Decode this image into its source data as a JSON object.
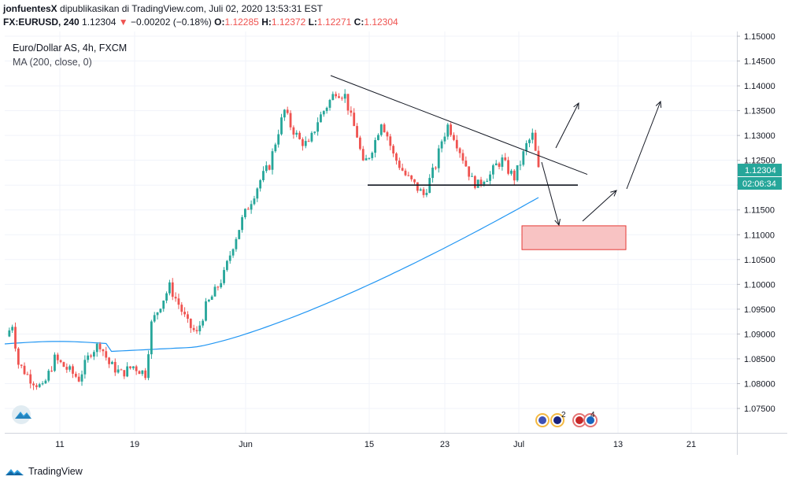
{
  "header": {
    "author": "jonfuentesX",
    "published": "dipublikasikan di TradingView.com, Juli 02, 2020 13:53:31 EST",
    "symbol": "FX:EURUSD, 240",
    "last": "1.12304",
    "change_arrow": "▼",
    "change": "−0.00202 (−0.18%)",
    "o_label": "O:",
    "o_val": "1.12285",
    "h_label": "H:",
    "h_val": "1.12372",
    "l_label": "L:",
    "l_val": "1.12271",
    "c_label": "C:",
    "c_val": "1.12304"
  },
  "legend": {
    "title": "Euro/Dollar AS, 4h, FXCM",
    "ma": "MA (200, close, 0)"
  },
  "price_tag": "1.12304",
  "countdown": "02:06:34",
  "events": {
    "count_a": "2",
    "count_b": "4"
  },
  "footer": {
    "brand": "TradingView"
  },
  "colors": {
    "up": "#26a69a",
    "down": "#ef5350",
    "ma": "#2196f3",
    "box_fill": "#f8c3c3",
    "box_stroke": "#e53935",
    "grid": "#f0f3fa"
  },
  "chart_data": {
    "type": "candlestick",
    "title": "Euro/Dollar AS, 4h, FXCM",
    "y_ticks": [
      "1.15000",
      "1.14500",
      "1.14000",
      "1.13500",
      "1.13000",
      "1.12500",
      "1.12000",
      "1.11500",
      "1.11000",
      "1.10500",
      "1.10000",
      "1.09500",
      "1.09000",
      "1.08500",
      "1.08000",
      "1.07500"
    ],
    "x_ticks": [
      "11",
      "19",
      "Jun",
      "15",
      "23",
      "Jul",
      "13",
      "21"
    ],
    "ylim": [
      1.0715,
      1.1505
    ],
    "grid": true,
    "indicator": {
      "name": "MA (200, close, 0)",
      "start": 1.088,
      "end": 1.1175
    },
    "ohlc_path": [
      [
        0,
        1.0895
      ],
      [
        2,
        1.092
      ],
      [
        4,
        1.084
      ],
      [
        8,
        1.081
      ],
      [
        12,
        1.079
      ],
      [
        16,
        1.085
      ],
      [
        20,
        1.083
      ],
      [
        24,
        1.081
      ],
      [
        28,
        1.0865
      ],
      [
        31,
        1.088
      ],
      [
        34,
        1.084
      ],
      [
        38,
        1.082
      ],
      [
        42,
        1.0835
      ],
      [
        46,
        1.082
      ],
      [
        48,
        1.092
      ],
      [
        51,
        1.096
      ],
      [
        54,
        1.0995
      ],
      [
        57,
        1.096
      ],
      [
        60,
        1.092
      ],
      [
        63,
        1.09
      ],
      [
        66,
        1.0955
      ],
      [
        69,
        1.0985
      ],
      [
        72,
        1.102
      ],
      [
        75,
        1.108
      ],
      [
        78,
        1.113
      ],
      [
        81,
        1.117
      ],
      [
        84,
        1.121
      ],
      [
        87,
        1.124
      ],
      [
        90,
        1.131
      ],
      [
        92,
        1.135
      ],
      [
        94,
        1.132
      ],
      [
        97,
        1.129
      ],
      [
        100,
        1.128
      ],
      [
        103,
        1.133
      ],
      [
        106,
        1.136
      ],
      [
        109,
        1.139
      ],
      [
        112,
        1.138
      ],
      [
        114,
        1.1335
      ],
      [
        116,
        1.13
      ],
      [
        118,
        1.124
      ],
      [
        120,
        1.126
      ],
      [
        122,
        1.129
      ],
      [
        124,
        1.133
      ],
      [
        126,
        1.13
      ],
      [
        128,
        1.126
      ],
      [
        130,
        1.124
      ],
      [
        132,
        1.122
      ],
      [
        135,
        1.12
      ],
      [
        138,
        1.118
      ],
      [
        140,
        1.121
      ],
      [
        142,
        1.124
      ],
      [
        144,
        1.129
      ],
      [
        146,
        1.132
      ],
      [
        148,
        1.13
      ],
      [
        150,
        1.127
      ],
      [
        152,
        1.124
      ],
      [
        154,
        1.121
      ],
      [
        156,
        1.12
      ],
      [
        158,
        1.1215
      ],
      [
        160,
        1.122
      ],
      [
        162,
        1.124
      ],
      [
        164,
        1.125
      ],
      [
        166,
        1.123
      ],
      [
        168,
        1.1215
      ],
      [
        170,
        1.1245
      ],
      [
        172,
        1.128
      ],
      [
        174,
        1.13
      ],
      [
        176,
        1.123
      ]
    ],
    "annotations": {
      "resistance": [
        [
          1.1415
        ],
        [
          1.122
        ]
      ],
      "support": 1.12,
      "target_zone": [
        1.107,
        1.1118
      ]
    }
  }
}
